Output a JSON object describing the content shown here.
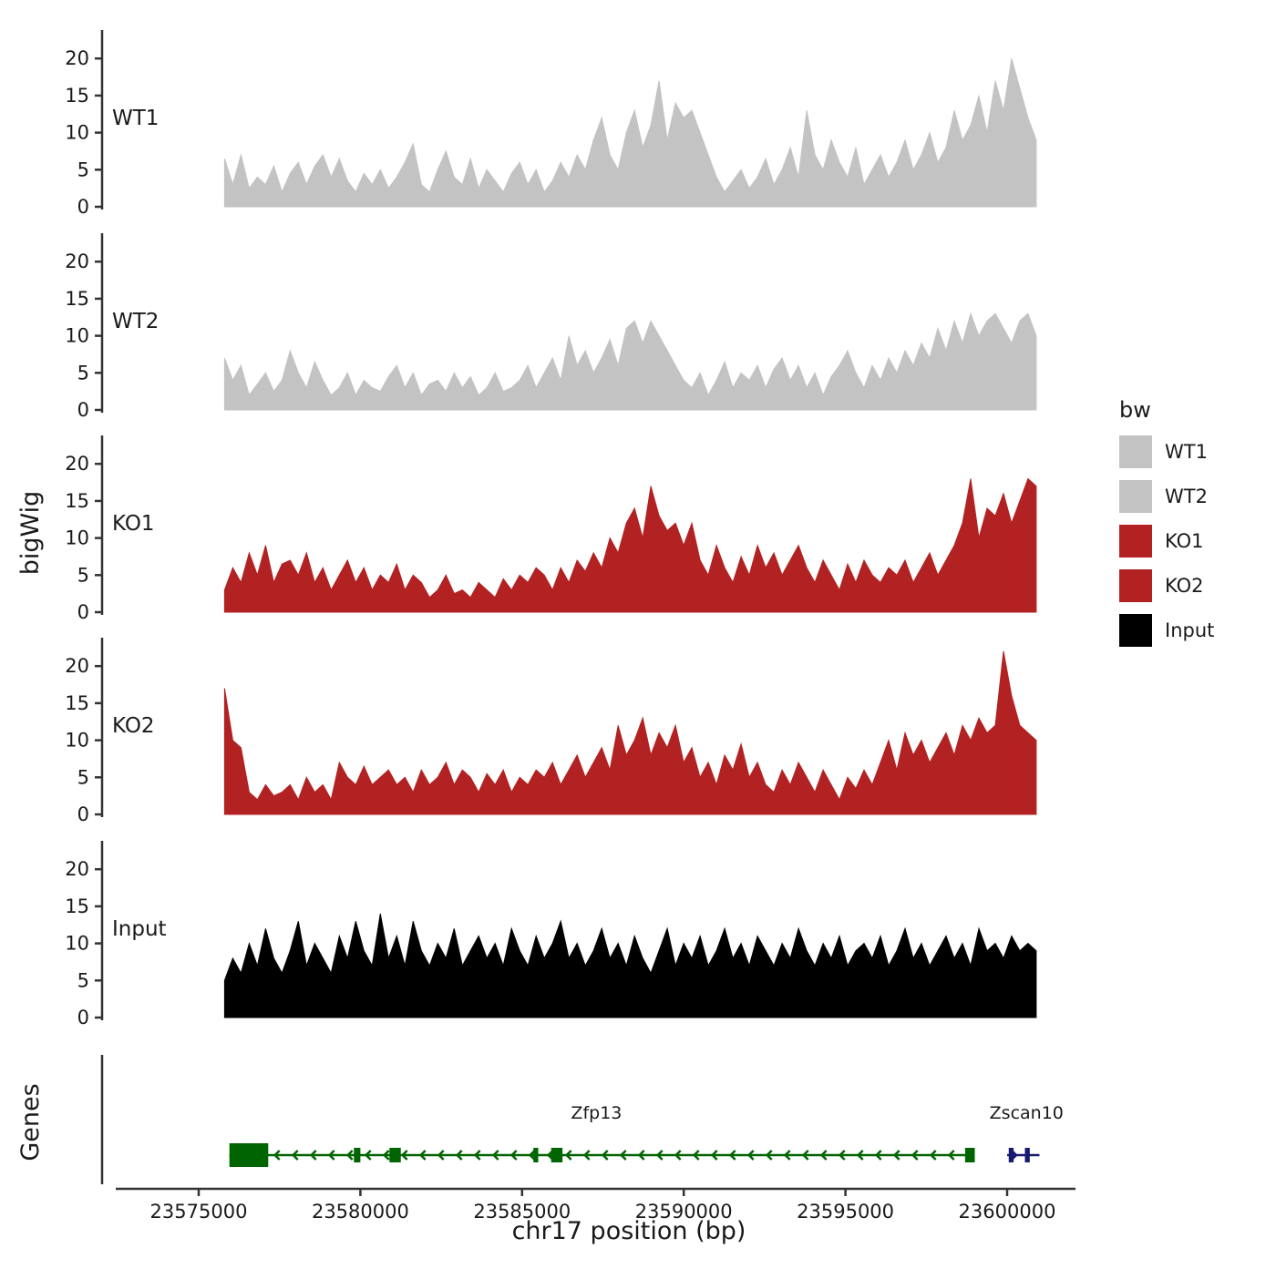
{
  "axis": {
    "y_label": "bigWig",
    "genes_label": "Genes",
    "x_label": "chr17 position (bp)",
    "y_ticks": [
      0,
      5,
      10,
      15,
      20
    ],
    "x_ticks": [
      23575000,
      23580000,
      23585000,
      23590000,
      23595000,
      23600000
    ]
  },
  "legend": {
    "title": "bw",
    "entries": [
      {
        "label": "WT1",
        "color": "#c3c3c3"
      },
      {
        "label": "WT2",
        "color": "#c3c3c3"
      },
      {
        "label": "KO1",
        "color": "#b22222"
      },
      {
        "label": "KO2",
        "color": "#b22222"
      },
      {
        "label": "Input",
        "color": "#000000"
      }
    ]
  },
  "chart_data": {
    "type": "area",
    "title": "",
    "xlabel": "chr17 position (bp)",
    "ylabel": "bigWig",
    "ylim": [
      0,
      23
    ],
    "x_start": 23575800,
    "x_end": 23600900,
    "x_tick_values": [
      23575000,
      23580000,
      23585000,
      23590000,
      23595000,
      23600000
    ],
    "y_tick_values": [
      0,
      5,
      10,
      15,
      20
    ],
    "tracks": [
      {
        "name": "WT1",
        "color": "#c3c3c3",
        "values": [
          6.5,
          3,
          7,
          2.5,
          4,
          3,
          5.5,
          2,
          4.5,
          6,
          3,
          5.5,
          7,
          4,
          6.5,
          3.5,
          2,
          4.5,
          3,
          5,
          2.5,
          4,
          6,
          8.5,
          3,
          2,
          5,
          7.5,
          4,
          3,
          6.5,
          2.5,
          5,
          3.5,
          2,
          4.5,
          6,
          3,
          5,
          2,
          3.5,
          6,
          4,
          7,
          5,
          9,
          12,
          7,
          5,
          10,
          13,
          8,
          11,
          17,
          9,
          14,
          12,
          13,
          10,
          7,
          4,
          2,
          3.5,
          5,
          2.5,
          4,
          6.5,
          3,
          5,
          8,
          4,
          13,
          7,
          5,
          9,
          6,
          4,
          8,
          3,
          5,
          7,
          4,
          6,
          9,
          5,
          7,
          10,
          6,
          8,
          13,
          9,
          11,
          15,
          10,
          17,
          13,
          20,
          16,
          12,
          9
        ]
      },
      {
        "name": "WT2",
        "color": "#c3c3c3",
        "values": [
          7,
          4,
          6,
          2,
          3.5,
          5,
          2.5,
          4,
          8,
          5,
          3,
          6.5,
          4,
          2,
          3,
          5,
          2,
          4,
          3,
          2.5,
          4.5,
          6,
          3,
          5,
          2,
          3.5,
          4,
          2.5,
          5,
          3,
          4.5,
          2,
          3,
          5,
          2.5,
          3,
          4,
          6,
          3,
          5,
          7,
          4,
          10,
          6,
          8,
          5,
          7,
          9.5,
          6,
          11,
          12,
          9,
          12,
          10,
          8,
          6,
          4,
          3,
          5,
          2,
          4,
          6.5,
          3,
          5,
          4,
          6,
          3,
          5.5,
          7,
          4,
          6,
          3,
          5,
          2,
          4.5,
          6,
          8,
          5,
          3,
          6,
          4,
          7,
          5,
          8,
          6,
          9,
          7,
          11,
          8,
          12,
          9,
          13,
          10,
          12,
          13,
          11,
          9,
          12,
          13,
          10
        ]
      },
      {
        "name": "KO1",
        "color": "#b22222",
        "values": [
          3,
          6,
          4,
          8,
          5,
          9,
          4,
          6.5,
          7,
          5,
          8,
          4,
          6,
          3,
          5,
          7,
          4,
          6,
          3,
          5,
          4,
          6.5,
          3,
          5,
          4,
          2,
          3,
          5,
          2.5,
          3,
          2,
          4,
          3,
          2,
          4.5,
          3,
          5,
          4,
          6,
          5,
          3,
          6,
          4,
          7,
          5.5,
          8,
          6,
          10,
          8,
          12,
          14,
          10,
          17,
          13,
          11,
          12,
          9,
          12,
          7,
          5,
          9,
          6,
          4,
          7.5,
          5,
          9,
          6,
          8,
          5,
          7,
          9,
          6,
          4,
          7,
          5,
          3,
          6.5,
          4,
          7,
          5,
          4,
          6,
          5,
          7,
          4,
          6,
          8,
          5,
          7,
          9,
          12,
          18,
          10,
          14,
          13,
          16,
          12,
          15,
          18,
          17
        ]
      },
      {
        "name": "KO2",
        "color": "#b22222",
        "values": [
          17,
          10,
          9,
          3,
          2,
          4,
          2.5,
          3,
          4,
          2,
          5,
          3,
          4,
          2,
          7,
          5,
          4,
          6.5,
          4,
          5,
          6,
          4,
          5,
          3,
          6,
          4,
          5,
          7,
          4,
          6,
          5,
          3,
          5.5,
          4,
          6,
          3,
          5,
          4,
          6,
          5,
          7,
          4,
          6,
          8,
          5,
          7,
          9,
          6,
          12,
          8,
          10,
          13,
          8,
          11,
          9,
          12,
          7,
          9,
          5,
          7,
          4,
          8,
          6,
          9.5,
          5,
          7,
          4,
          3,
          6,
          4,
          7,
          5,
          3,
          6,
          4,
          2,
          5,
          3.5,
          6,
          4,
          7,
          10,
          6,
          11,
          8,
          10,
          7,
          9,
          11,
          8,
          12,
          10,
          13,
          11,
          12,
          22,
          16,
          12,
          11,
          10
        ]
      },
      {
        "name": "Input",
        "color": "#000000",
        "values": [
          5,
          8,
          6,
          10,
          7,
          12,
          8,
          6,
          9,
          13,
          7,
          10,
          8,
          6,
          11,
          8,
          13,
          9,
          7,
          14,
          8,
          11,
          7,
          13,
          9,
          7,
          10,
          8,
          12,
          7,
          9,
          11,
          8,
          10,
          7,
          12,
          9,
          7,
          11,
          8,
          10,
          13,
          8,
          10,
          7,
          9,
          12,
          8,
          10,
          7,
          11,
          8,
          6,
          9,
          12,
          7,
          10,
          8,
          11,
          7,
          9,
          12,
          8,
          10,
          7,
          11,
          9,
          7,
          10,
          8,
          12,
          9,
          7,
          10,
          8,
          11,
          7,
          9,
          10,
          8,
          11,
          7,
          9,
          12,
          8,
          10,
          7,
          9,
          11,
          8,
          10,
          7,
          12,
          9,
          10,
          8,
          11,
          9,
          10,
          9
        ]
      }
    ],
    "genes": [
      {
        "name": "Zfp13",
        "strand": "-",
        "color": "#006400",
        "start": 23575950,
        "end": 23599000,
        "label_bp": 23587300,
        "exons": [
          [
            23575950,
            23577150
          ],
          [
            23579800,
            23580000
          ],
          [
            23580900,
            23581250
          ],
          [
            23585350,
            23585500
          ],
          [
            23585900,
            23586250
          ],
          [
            23598700,
            23599000
          ]
        ]
      },
      {
        "name": "Zscan10",
        "strand": "+",
        "color": "#191970",
        "start": 23600000,
        "end": 23601000,
        "label_bp": 23600600,
        "exons": [
          [
            23600050,
            23600200
          ],
          [
            23600550,
            23600700
          ]
        ]
      }
    ]
  }
}
